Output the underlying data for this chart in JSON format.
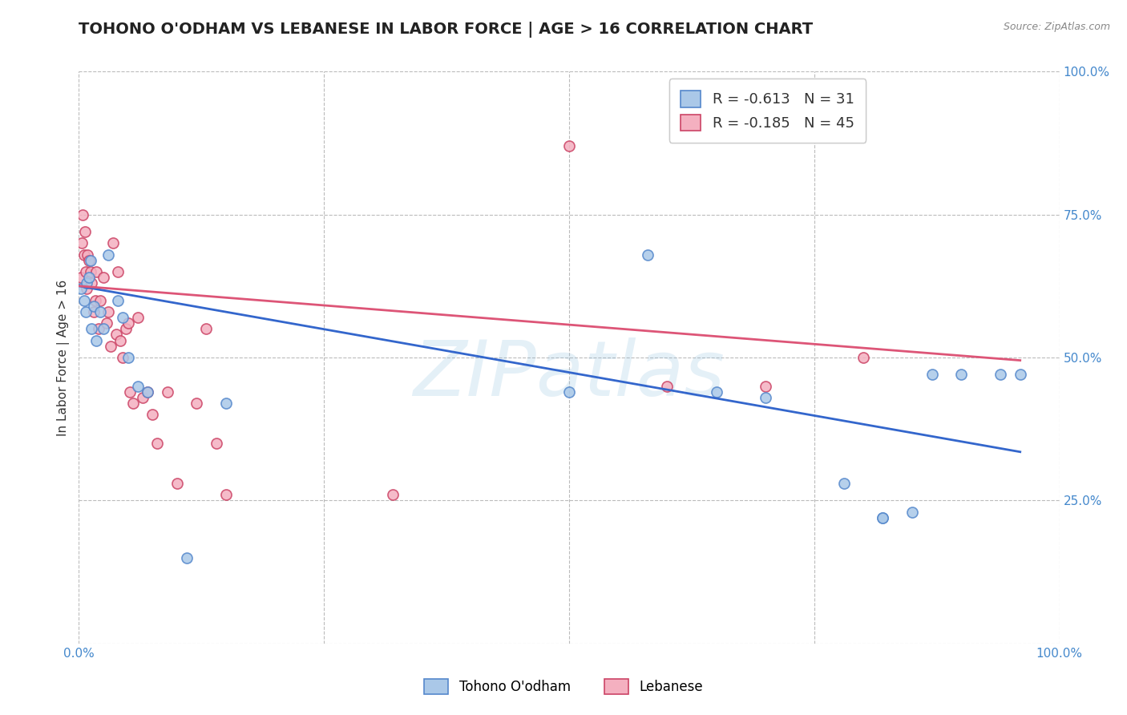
{
  "title": "TOHONO O'ODHAM VS LEBANESE IN LABOR FORCE | AGE > 16 CORRELATION CHART",
  "source": "Source: ZipAtlas.com",
  "ylabel": "In Labor Force | Age > 16",
  "watermark": "ZIPatlas",
  "series": [
    {
      "name": "Tohono O'odham",
      "R": -0.613,
      "N": 31,
      "fill_color": "#aac8e8",
      "edge_color": "#5588cc",
      "trend_color": "#3366cc",
      "points": [
        [
          0.002,
          0.62
        ],
        [
          0.005,
          0.6
        ],
        [
          0.007,
          0.58
        ],
        [
          0.008,
          0.63
        ],
        [
          0.01,
          0.64
        ],
        [
          0.012,
          0.67
        ],
        [
          0.013,
          0.55
        ],
        [
          0.015,
          0.59
        ],
        [
          0.018,
          0.53
        ],
        [
          0.022,
          0.58
        ],
        [
          0.025,
          0.55
        ],
        [
          0.03,
          0.68
        ],
        [
          0.04,
          0.6
        ],
        [
          0.045,
          0.57
        ],
        [
          0.05,
          0.5
        ],
        [
          0.06,
          0.45
        ],
        [
          0.07,
          0.44
        ],
        [
          0.11,
          0.15
        ],
        [
          0.15,
          0.42
        ],
        [
          0.5,
          0.44
        ],
        [
          0.58,
          0.68
        ],
        [
          0.65,
          0.44
        ],
        [
          0.7,
          0.43
        ],
        [
          0.78,
          0.28
        ],
        [
          0.82,
          0.22
        ],
        [
          0.85,
          0.23
        ],
        [
          0.87,
          0.47
        ],
        [
          0.9,
          0.47
        ],
        [
          0.94,
          0.47
        ],
        [
          0.82,
          0.22
        ],
        [
          0.96,
          0.47
        ]
      ]
    },
    {
      "name": "Lebanese",
      "R": -0.185,
      "N": 45,
      "fill_color": "#f4b0c0",
      "edge_color": "#cc4466",
      "trend_color": "#cc3366",
      "points": [
        [
          0.002,
          0.64
        ],
        [
          0.003,
          0.7
        ],
        [
          0.004,
          0.75
        ],
        [
          0.005,
          0.68
        ],
        [
          0.006,
          0.72
        ],
        [
          0.007,
          0.65
        ],
        [
          0.008,
          0.62
        ],
        [
          0.009,
          0.68
        ],
        [
          0.01,
          0.67
        ],
        [
          0.012,
          0.65
        ],
        [
          0.013,
          0.63
        ],
        [
          0.015,
          0.58
        ],
        [
          0.017,
          0.6
        ],
        [
          0.018,
          0.65
        ],
        [
          0.02,
          0.55
        ],
        [
          0.022,
          0.6
        ],
        [
          0.025,
          0.64
        ],
        [
          0.028,
          0.56
        ],
        [
          0.03,
          0.58
        ],
        [
          0.032,
          0.52
        ],
        [
          0.035,
          0.7
        ],
        [
          0.038,
          0.54
        ],
        [
          0.04,
          0.65
        ],
        [
          0.042,
          0.53
        ],
        [
          0.045,
          0.5
        ],
        [
          0.048,
          0.55
        ],
        [
          0.05,
          0.56
        ],
        [
          0.052,
          0.44
        ],
        [
          0.055,
          0.42
        ],
        [
          0.06,
          0.57
        ],
        [
          0.065,
          0.43
        ],
        [
          0.07,
          0.44
        ],
        [
          0.075,
          0.4
        ],
        [
          0.08,
          0.35
        ],
        [
          0.09,
          0.44
        ],
        [
          0.1,
          0.28
        ],
        [
          0.12,
          0.42
        ],
        [
          0.13,
          0.55
        ],
        [
          0.14,
          0.35
        ],
        [
          0.15,
          0.26
        ],
        [
          0.32,
          0.26
        ],
        [
          0.5,
          0.87
        ],
        [
          0.6,
          0.45
        ],
        [
          0.7,
          0.45
        ],
        [
          0.8,
          0.5
        ]
      ]
    }
  ],
  "trend_lines": [
    {
      "start_x": 0.0,
      "start_y": 0.625,
      "end_x": 0.96,
      "end_y": 0.335,
      "color": "#3366cc"
    },
    {
      "start_x": 0.0,
      "start_y": 0.625,
      "end_x": 0.96,
      "end_y": 0.495,
      "color": "#dd5577"
    }
  ],
  "xlim": [
    0.0,
    1.0
  ],
  "ylim": [
    0.0,
    1.0
  ],
  "xtick_vals": [
    0.0,
    0.25,
    0.5,
    0.75,
    1.0
  ],
  "xtick_labels": [
    "0.0%",
    "",
    "",
    "",
    "100.0%"
  ],
  "ytick_vals": [
    0.25,
    0.5,
    0.75,
    1.0
  ],
  "ytick_labels": [
    "25.0%",
    "50.0%",
    "75.0%",
    "100.0%"
  ],
  "grid_color": "#bbbbbb",
  "background_color": "#ffffff",
  "title_fontsize": 14,
  "axis_label_fontsize": 11,
  "tick_fontsize": 11,
  "marker_size": 9
}
